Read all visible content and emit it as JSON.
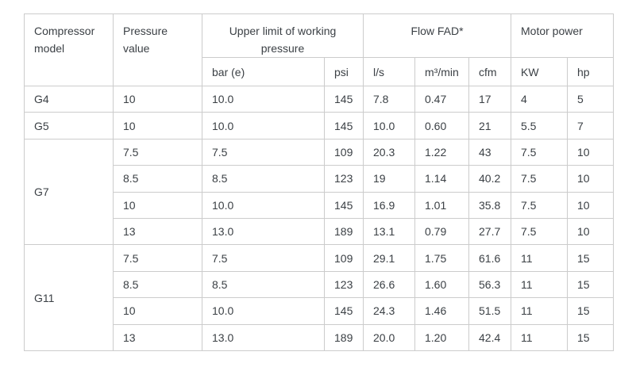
{
  "page": {
    "background": "#ffffff",
    "text_color": "#3b4045",
    "border_color": "#cccccc"
  },
  "table": {
    "header": {
      "compressor_model": "Compressor model",
      "pressure_value": "Pressure value",
      "working_pressure_group": "Upper limit of working pressure",
      "flow_fad_group": "Flow FAD*",
      "motor_power_group": "Motor power",
      "unit_bar": "bar (e)",
      "unit_psi": "psi",
      "unit_ls": "l/s",
      "unit_m3min": "m³/min",
      "unit_cfm": "cfm",
      "unit_kw": "KW",
      "unit_hp": "hp"
    }
  },
  "chart_data": {
    "type": "table",
    "columns": [
      "Compressor model",
      "Pressure value",
      "bar (e)",
      "psi",
      "l/s",
      "m³/min",
      "cfm",
      "KW",
      "hp"
    ],
    "column_groups": [
      {
        "label": "Upper limit of working pressure",
        "columns": [
          "bar (e)",
          "psi"
        ]
      },
      {
        "label": "Flow FAD*",
        "columns": [
          "l/s",
          "m³/min",
          "cfm"
        ]
      },
      {
        "label": "Motor power",
        "columns": [
          "KW",
          "hp"
        ]
      }
    ],
    "rows": [
      [
        "G4",
        "10",
        "10.0",
        "145",
        "7.8",
        "0.47",
        "17",
        "4",
        "5"
      ],
      [
        "G5",
        "10",
        "10.0",
        "145",
        "10.0",
        "0.60",
        "21",
        "5.5",
        "7"
      ],
      [
        "G7",
        "7.5",
        "7.5",
        "109",
        "20.3",
        "1.22",
        "43",
        "7.5",
        "10"
      ],
      [
        "G7",
        "8.5",
        "8.5",
        "123",
        "19",
        "1.14",
        "40.2",
        "7.5",
        "10"
      ],
      [
        "G7",
        "10",
        "10.0",
        "145",
        "16.9",
        "1.01",
        "35.8",
        "7.5",
        "10"
      ],
      [
        "G7",
        "13",
        "13.0",
        "189",
        "13.1",
        "0.79",
        "27.7",
        "7.5",
        "10"
      ],
      [
        "G11",
        "7.5",
        "7.5",
        "109",
        "29.1",
        "1.75",
        "61.6",
        "11",
        "15"
      ],
      [
        "G11",
        "8.5",
        "8.5",
        "123",
        "26.6",
        "1.60",
        "56.3",
        "11",
        "15"
      ],
      [
        "G11",
        "10",
        "10.0",
        "145",
        "24.3",
        "1.46",
        "51.5",
        "11",
        "15"
      ],
      [
        "G11",
        "13",
        "13.0",
        "189",
        "20.0",
        "1.20",
        "42.4",
        "11",
        "15"
      ]
    ]
  }
}
